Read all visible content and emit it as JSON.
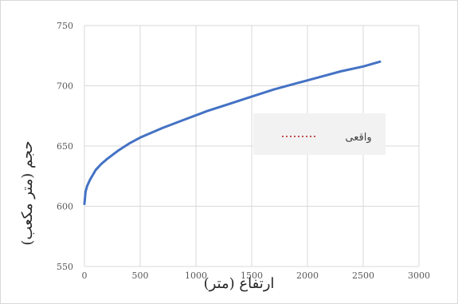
{
  "chart_data": {
    "type": "line",
    "xlabel": "ارتفاع (متر)",
    "ylabel": "حجم (متر مکعب)",
    "xlim": [
      0,
      3000
    ],
    "ylim": [
      550,
      750
    ],
    "x_ticks": [
      "0",
      "500",
      "1000",
      "1500",
      "2000",
      "2500",
      "3000"
    ],
    "y_ticks": [
      "550",
      "600",
      "650",
      "700",
      "750"
    ],
    "grid": true,
    "legend_position": "right",
    "series": [
      {
        "name": "واقعی",
        "color": "#c0504d",
        "style": "dotted",
        "x": [
          0,
          10,
          25,
          50,
          100,
          150,
          200,
          300,
          400,
          500,
          700,
          900,
          1100,
          1300,
          1500,
          1700,
          1900,
          2100,
          2300,
          2500,
          2650
        ],
        "y": [
          602,
          612,
          617,
          622,
          630,
          635,
          639,
          646,
          652,
          657,
          665,
          672,
          679,
          685,
          691,
          697,
          702,
          707,
          712,
          716,
          720
        ]
      },
      {
        "name": "",
        "color": "#4472c4",
        "style": "solid",
        "x": [
          0,
          10,
          25,
          50,
          100,
          150,
          200,
          300,
          400,
          500,
          700,
          900,
          1100,
          1300,
          1500,
          1700,
          1900,
          2100,
          2300,
          2500,
          2650
        ],
        "y": [
          602,
          612,
          617,
          622,
          630,
          635,
          639,
          646,
          652,
          657,
          665,
          672,
          679,
          685,
          691,
          697,
          702,
          707,
          712,
          716,
          720
        ]
      }
    ]
  }
}
